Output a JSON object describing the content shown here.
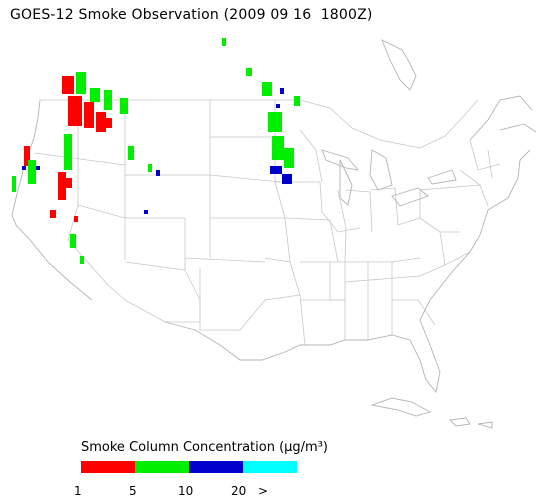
{
  "title": "GOES-12 Smoke Observation (2009 09 16  1800Z)",
  "legend": {
    "title": "Smoke Column Concentration (μg/m³)",
    "colors": [
      "#ff0000",
      "#00ee00",
      "#0000cc",
      "#00ffff"
    ],
    "ticks": [
      "1",
      "5",
      "10",
      "20",
      ">"
    ]
  },
  "palette": {
    "state_lines": "#c8c8c8",
    "coast_lines": "#b4b4b4"
  }
}
